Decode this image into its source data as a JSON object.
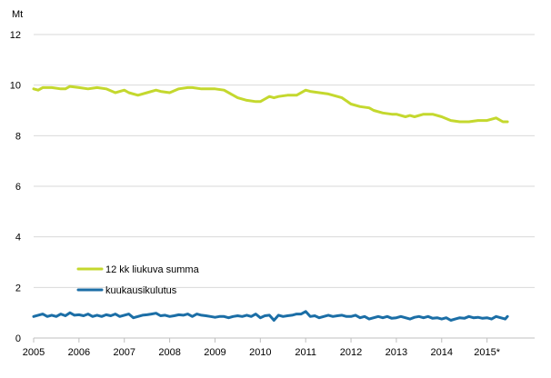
{
  "chart_data": {
    "type": "line",
    "ylabel": "Mt",
    "ylim": [
      0,
      12
    ],
    "yticks": [
      0,
      2,
      4,
      6,
      8,
      10,
      12
    ],
    "xlim": [
      2005,
      2016.05
    ],
    "xticks": [
      {
        "value": 2005,
        "label": "2005"
      },
      {
        "value": 2006,
        "label": "2006"
      },
      {
        "value": 2007,
        "label": "2007"
      },
      {
        "value": 2008,
        "label": "2008"
      },
      {
        "value": 2009,
        "label": "2009"
      },
      {
        "value": 2010,
        "label": "2010"
      },
      {
        "value": 2011,
        "label": "2011"
      },
      {
        "value": 2012,
        "label": "2012"
      },
      {
        "value": 2013,
        "label": "2013"
      },
      {
        "value": 2014,
        "label": "2014"
      },
      {
        "value": 2015,
        "label": "2015*"
      }
    ],
    "grid": "horizontal",
    "legend_position": "bottom-left",
    "series": [
      {
        "name": "12 kk liukuva summa",
        "color": "#c4d82e",
        "x": [
          2005.0,
          2005.1,
          2005.2,
          2005.4,
          2005.6,
          2005.7,
          2005.8,
          2006.0,
          2006.2,
          2006.4,
          2006.6,
          2006.8,
          2007.0,
          2007.1,
          2007.3,
          2007.5,
          2007.7,
          2007.8,
          2008.0,
          2008.2,
          2008.4,
          2008.5,
          2008.7,
          2009.0,
          2009.2,
          2009.5,
          2009.7,
          2009.9,
          2010.0,
          2010.1,
          2010.2,
          2010.3,
          2010.4,
          2010.6,
          2010.8,
          2011.0,
          2011.1,
          2011.3,
          2011.5,
          2011.6,
          2011.8,
          2012.0,
          2012.2,
          2012.4,
          2012.5,
          2012.7,
          2012.9,
          2013.0,
          2013.2,
          2013.3,
          2013.4,
          2013.6,
          2013.8,
          2014.0,
          2014.2,
          2014.4,
          2014.6,
          2014.8,
          2015.0,
          2015.1,
          2015.2,
          2015.35,
          2015.45
        ],
        "y": [
          9.85,
          9.8,
          9.9,
          9.9,
          9.85,
          9.85,
          9.95,
          9.9,
          9.85,
          9.9,
          9.85,
          9.7,
          9.8,
          9.7,
          9.6,
          9.7,
          9.8,
          9.75,
          9.7,
          9.85,
          9.9,
          9.9,
          9.85,
          9.85,
          9.8,
          9.5,
          9.4,
          9.35,
          9.35,
          9.45,
          9.55,
          9.5,
          9.55,
          9.6,
          9.6,
          9.8,
          9.75,
          9.7,
          9.65,
          9.6,
          9.5,
          9.25,
          9.15,
          9.1,
          9.0,
          8.9,
          8.85,
          8.85,
          8.75,
          8.8,
          8.75,
          8.85,
          8.85,
          8.75,
          8.6,
          8.55,
          8.55,
          8.6,
          8.6,
          8.65,
          8.7,
          8.55,
          8.55
        ]
      },
      {
        "name": "kuukausikulutus",
        "color": "#1b6ea6",
        "x": [
          2005.0,
          2005.1,
          2005.2,
          2005.3,
          2005.4,
          2005.5,
          2005.6,
          2005.7,
          2005.8,
          2005.9,
          2006.0,
          2006.1,
          2006.2,
          2006.3,
          2006.4,
          2006.5,
          2006.6,
          2006.7,
          2006.8,
          2006.9,
          2007.0,
          2007.1,
          2007.2,
          2007.3,
          2007.4,
          2007.5,
          2007.6,
          2007.7,
          2007.8,
          2007.9,
          2008.0,
          2008.1,
          2008.2,
          2008.3,
          2008.4,
          2008.5,
          2008.6,
          2008.7,
          2008.8,
          2008.9,
          2009.0,
          2009.1,
          2009.2,
          2009.3,
          2009.4,
          2009.5,
          2009.6,
          2009.7,
          2009.8,
          2009.9,
          2010.0,
          2010.1,
          2010.2,
          2010.3,
          2010.4,
          2010.5,
          2010.6,
          2010.7,
          2010.8,
          2010.9,
          2011.0,
          2011.1,
          2011.2,
          2011.3,
          2011.4,
          2011.5,
          2011.6,
          2011.7,
          2011.8,
          2011.9,
          2012.0,
          2012.1,
          2012.2,
          2012.3,
          2012.4,
          2012.5,
          2012.6,
          2012.7,
          2012.8,
          2012.9,
          2013.0,
          2013.1,
          2013.2,
          2013.3,
          2013.4,
          2013.5,
          2013.6,
          2013.7,
          2013.8,
          2013.9,
          2014.0,
          2014.1,
          2014.2,
          2014.3,
          2014.4,
          2014.5,
          2014.6,
          2014.7,
          2014.8,
          2014.9,
          2015.0,
          2015.1,
          2015.2,
          2015.3,
          2015.4,
          2015.45
        ],
        "y": [
          0.85,
          0.9,
          0.95,
          0.85,
          0.9,
          0.85,
          0.95,
          0.88,
          1.0,
          0.9,
          0.92,
          0.88,
          0.95,
          0.85,
          0.9,
          0.85,
          0.92,
          0.88,
          0.95,
          0.85,
          0.9,
          0.95,
          0.8,
          0.85,
          0.9,
          0.92,
          0.95,
          0.98,
          0.88,
          0.9,
          0.85,
          0.88,
          0.92,
          0.9,
          0.95,
          0.85,
          0.95,
          0.9,
          0.88,
          0.85,
          0.82,
          0.85,
          0.85,
          0.8,
          0.85,
          0.88,
          0.85,
          0.9,
          0.85,
          0.95,
          0.8,
          0.88,
          0.9,
          0.7,
          0.9,
          0.85,
          0.88,
          0.9,
          0.95,
          0.95,
          1.05,
          0.85,
          0.88,
          0.8,
          0.85,
          0.9,
          0.85,
          0.88,
          0.9,
          0.85,
          0.85,
          0.9,
          0.8,
          0.85,
          0.75,
          0.8,
          0.85,
          0.8,
          0.85,
          0.78,
          0.8,
          0.85,
          0.8,
          0.75,
          0.82,
          0.85,
          0.8,
          0.85,
          0.78,
          0.8,
          0.75,
          0.8,
          0.7,
          0.75,
          0.8,
          0.78,
          0.85,
          0.8,
          0.82,
          0.78,
          0.8,
          0.75,
          0.85,
          0.8,
          0.75,
          0.85
        ]
      }
    ]
  }
}
